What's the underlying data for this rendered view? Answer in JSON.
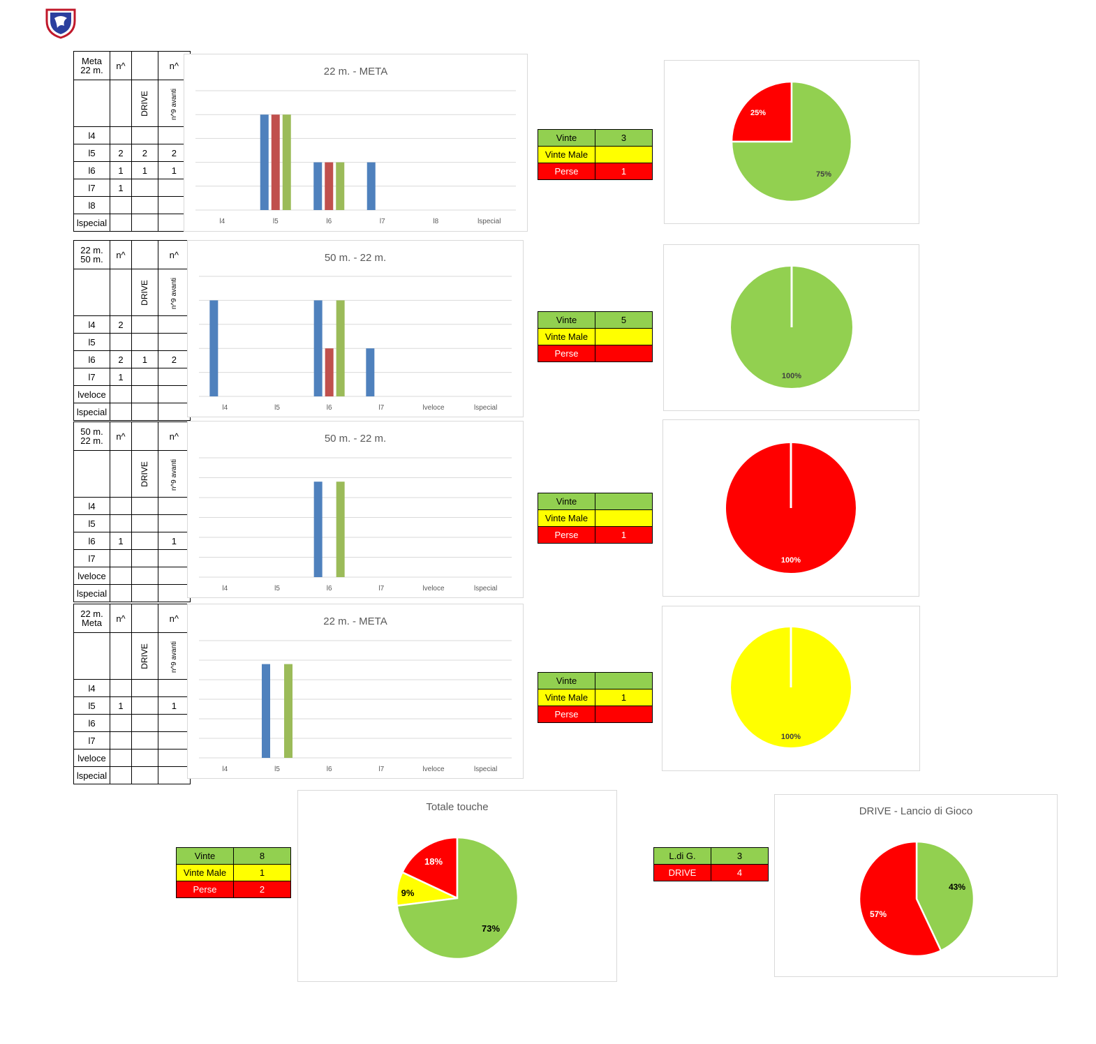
{
  "colors": {
    "blue": "#4f81bd",
    "red": "#c0504d",
    "green": "#9bbb59",
    "pie_green": "#92d050",
    "pie_red": "#ff0000",
    "pie_yellow": "#ffff00",
    "grid": "#d9d9d9"
  },
  "logo": {
    "icon": "shield-crest-icon"
  },
  "sections": [
    {
      "table": {
        "header": [
          "Meta\n22 m.",
          "n^",
          "",
          "n^"
        ],
        "rot": [
          "",
          "",
          "DRIVE",
          "n^9 avanti"
        ],
        "rows": [
          [
            "l4",
            "",
            "",
            ""
          ],
          [
            "l5",
            "2",
            "2",
            "2"
          ],
          [
            "l6",
            "1",
            "1",
            "1"
          ],
          [
            "l7",
            "1",
            "",
            ""
          ],
          [
            "l8",
            "",
            "",
            ""
          ],
          [
            "lspecial",
            "",
            "",
            ""
          ]
        ]
      },
      "results": {
        "vinte_label": "Vinte",
        "vinte": "3",
        "male_label": "Vinte Male",
        "male": "",
        "perse_label": "Perse",
        "perse": "1"
      }
    },
    {
      "table": {
        "header": [
          "22 m.\n50 m.",
          "n^",
          "",
          "n^"
        ],
        "rot": [
          "",
          "",
          "DRIVE",
          "n^9 avanti"
        ],
        "rows": [
          [
            "l4",
            "2",
            "",
            ""
          ],
          [
            "l5",
            "",
            "",
            ""
          ],
          [
            "l6",
            "2",
            "1",
            "2"
          ],
          [
            "l7",
            "1",
            "",
            ""
          ],
          [
            "lveloce",
            "",
            "",
            ""
          ],
          [
            "lspecial",
            "",
            "",
            ""
          ]
        ]
      },
      "results": {
        "vinte_label": "Vinte",
        "vinte": "5",
        "male_label": "Vinte Male",
        "male": "",
        "perse_label": "Perse",
        "perse": ""
      }
    },
    {
      "table": {
        "header": [
          "50 m.\n22 m.",
          "n^",
          "",
          "n^"
        ],
        "rot": [
          "",
          "",
          "DRIVE",
          "n^9 avanti"
        ],
        "rows": [
          [
            "l4",
            "",
            "",
            ""
          ],
          [
            "l5",
            "",
            "",
            ""
          ],
          [
            "l6",
            "1",
            "",
            "1"
          ],
          [
            "l7",
            "",
            "",
            ""
          ],
          [
            "lveloce",
            "",
            "",
            ""
          ],
          [
            "lspecial",
            "",
            "",
            ""
          ]
        ]
      },
      "results": {
        "vinte_label": "Vinte",
        "vinte": "",
        "male_label": "Vinte Male",
        "male": "",
        "perse_label": "Perse",
        "perse": "1"
      }
    },
    {
      "table": {
        "header": [
          "22 m.\nMeta",
          "n^",
          "",
          "n^"
        ],
        "rot": [
          "",
          "",
          "DRIVE",
          "n^9 avanti"
        ],
        "rows": [
          [
            "l4",
            "",
            "",
            ""
          ],
          [
            "l5",
            "1",
            "",
            "1"
          ],
          [
            "l6",
            "",
            "",
            ""
          ],
          [
            "l7",
            "",
            "",
            ""
          ],
          [
            "lveloce",
            "",
            "",
            ""
          ],
          [
            "lspecial",
            "",
            "",
            ""
          ]
        ]
      },
      "results": {
        "vinte_label": "Vinte",
        "vinte": "",
        "male_label": "Vinte Male",
        "male": "1",
        "perse_label": "Perse",
        "perse": ""
      }
    }
  ],
  "bottom": {
    "totale": {
      "vinte_label": "Vinte",
      "vinte": "8",
      "male_label": "Vinte Male",
      "male": "1",
      "perse_label": "Perse",
      "perse": "2"
    },
    "drive": {
      "ldg_label": "L.di G.",
      "ldg": "3",
      "drive_label": "DRIVE",
      "drive": "4"
    }
  },
  "chart_data": [
    {
      "type": "bar",
      "title": "22 m. - META",
      "categories": [
        "l4",
        "l5",
        "l6",
        "l7",
        "l8",
        "lspecial"
      ],
      "ylim": [
        0,
        2.5
      ],
      "grid": true,
      "series": [
        {
          "color": "#4f81bd",
          "values": [
            0,
            2,
            1,
            1,
            0,
            0
          ]
        },
        {
          "color": "#c0504d",
          "values": [
            0,
            2,
            1,
            0,
            0,
            0
          ]
        },
        {
          "color": "#9bbb59",
          "values": [
            0,
            2,
            1,
            0,
            0,
            0
          ]
        }
      ]
    },
    {
      "type": "pie",
      "slices": [
        {
          "label": "25%",
          "value": 25,
          "color": "#ff0000"
        },
        {
          "label": "75%",
          "value": 75,
          "color": "#92d050"
        }
      ]
    },
    {
      "type": "bar",
      "title": "50 m. - 22 m.",
      "categories": [
        "l4",
        "l5",
        "l6",
        "l7",
        "lveloce",
        "lspecial"
      ],
      "ylim": [
        0,
        2.5
      ],
      "grid": true,
      "series": [
        {
          "color": "#4f81bd",
          "values": [
            2,
            0,
            2,
            1,
            0,
            0
          ]
        },
        {
          "color": "#c0504d",
          "values": [
            0,
            0,
            1,
            0,
            0,
            0
          ]
        },
        {
          "color": "#9bbb59",
          "values": [
            0,
            0,
            2,
            0,
            0,
            0
          ]
        }
      ]
    },
    {
      "type": "pie",
      "slices": [
        {
          "label": "100%",
          "value": 100,
          "color": "#92d050"
        }
      ]
    },
    {
      "type": "bar",
      "title": "50 m. - 22 m.",
      "categories": [
        "l4",
        "l5",
        "l6",
        "l7",
        "lveloce",
        "lspecial"
      ],
      "ylim": [
        0,
        1.25
      ],
      "grid": true,
      "series": [
        {
          "color": "#4f81bd",
          "values": [
            0,
            0,
            1,
            0,
            0,
            0
          ]
        },
        {
          "color": "#c0504d",
          "values": [
            0,
            0,
            0,
            0,
            0,
            0
          ]
        },
        {
          "color": "#9bbb59",
          "values": [
            0,
            0,
            1,
            0,
            0,
            0
          ]
        }
      ]
    },
    {
      "type": "pie",
      "slices": [
        {
          "label": "100%",
          "value": 100,
          "color": "#ff0000"
        }
      ]
    },
    {
      "type": "bar",
      "title": "22 m. - META",
      "categories": [
        "l4",
        "l5",
        "l6",
        "l7",
        "lveloce",
        "lspecial"
      ],
      "ylim": [
        0,
        1.25
      ],
      "grid": true,
      "series": [
        {
          "color": "#4f81bd",
          "values": [
            0,
            1,
            0,
            0,
            0,
            0
          ]
        },
        {
          "color": "#c0504d",
          "values": [
            0,
            0,
            0,
            0,
            0,
            0
          ]
        },
        {
          "color": "#9bbb59",
          "values": [
            0,
            1,
            0,
            0,
            0,
            0
          ]
        }
      ]
    },
    {
      "type": "pie",
      "slices": [
        {
          "label": "100%",
          "value": 100,
          "color": "#ffff00"
        }
      ]
    },
    {
      "type": "pie",
      "title": "Totale  touche",
      "slices": [
        {
          "label": "18%",
          "value": 18,
          "color": "#ff0000"
        },
        {
          "label": "9%",
          "value": 9,
          "color": "#ffff00"
        },
        {
          "label": "73%",
          "value": 73,
          "color": "#92d050"
        }
      ]
    },
    {
      "type": "pie",
      "title": "DRIVE - Lancio di Gioco",
      "slices": [
        {
          "label": "43%",
          "value": 43,
          "color": "#92d050"
        },
        {
          "label": "57%",
          "value": 57,
          "color": "#ff0000"
        }
      ]
    }
  ]
}
